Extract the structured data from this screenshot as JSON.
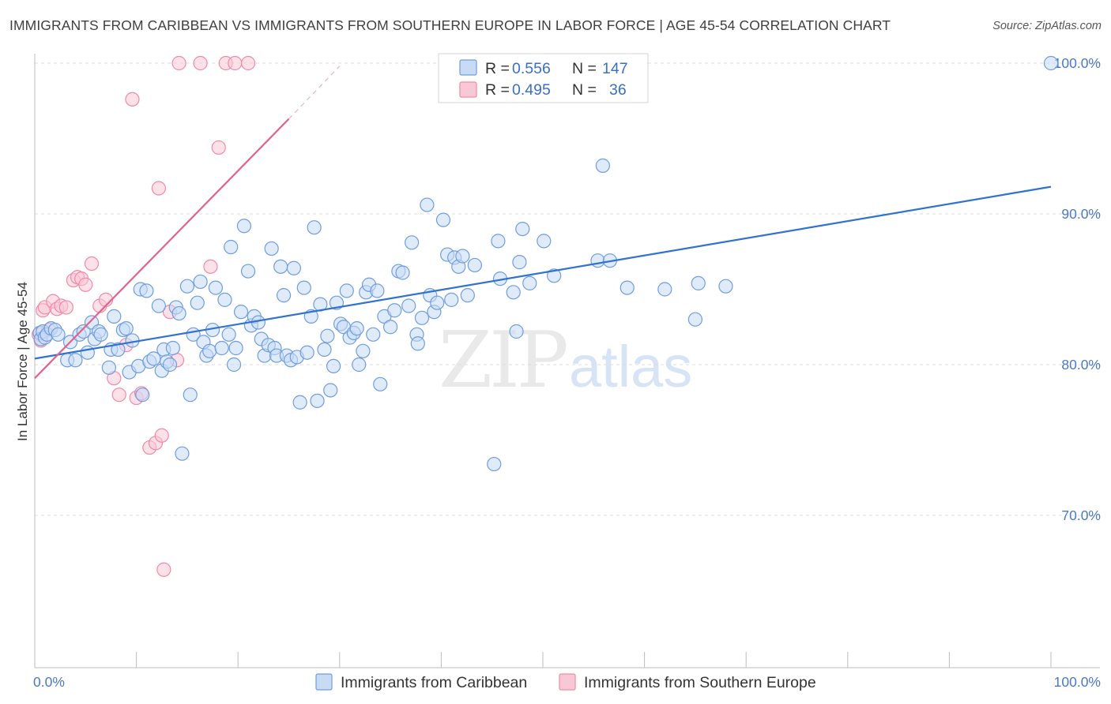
{
  "title": "IMMIGRANTS FROM CARIBBEAN VS IMMIGRANTS FROM SOUTHERN EUROPE IN LABOR FORCE | AGE 45-54 CORRELATION CHART",
  "source": "Source: ZipAtlas.com",
  "watermark": {
    "zip": "ZIP",
    "atlas": "atlas"
  },
  "chart_data": {
    "type": "scatter",
    "title": "IMMIGRANTS FROM CARIBBEAN VS IMMIGRANTS FROM SOUTHERN EUROPE IN LABOR FORCE | AGE 45-54 CORRELATION CHART",
    "xlabel": "",
    "ylabel": "In Labor Force | Age 45-54",
    "xlim": [
      0,
      100
    ],
    "ylim": [
      60.5,
      101.5
    ],
    "x_tick_labels": [
      {
        "value": 0,
        "label": "0.0%"
      },
      {
        "value": 100,
        "label": "100.0%"
      }
    ],
    "y_tick_labels": [
      {
        "value": 70,
        "label": "70.0%"
      },
      {
        "value": 80,
        "label": "80.0%"
      },
      {
        "value": 90,
        "label": "90.0%"
      },
      {
        "value": 100,
        "label": "100.0%"
      }
    ],
    "x_minor_ticks": [
      0,
      10,
      20,
      30,
      40,
      50,
      60,
      70,
      80,
      90,
      100
    ],
    "gridlines_y": [
      70,
      80,
      90,
      100
    ],
    "legend": {
      "position": "top-center",
      "entries": [
        {
          "series": "Immigrants from Caribbean",
          "r_label": "R =",
          "r": "0.556",
          "n_label": "N =",
          "n": "147"
        },
        {
          "series": "Immigrants from Southern Europe",
          "r_label": "R =",
          "r": "0.495",
          "n_label": "N =",
          "n": "36"
        }
      ]
    },
    "series": [
      {
        "name": "Immigrants from Caribbean",
        "color": "#6f9de0",
        "fill": "#c7dbf5",
        "line_color": "#2f72d0",
        "trend": {
          "x": [
            0,
            100
          ],
          "y": [
            80.4,
            91.8
          ]
        },
        "points": [
          [
            0.5,
            82.1
          ],
          [
            0.6,
            81.7
          ],
          [
            0.8,
            82.2
          ],
          [
            1.0,
            81.8
          ],
          [
            1.2,
            82.0
          ],
          [
            1.6,
            82.4
          ],
          [
            2.0,
            82.3
          ],
          [
            2.3,
            82.0
          ],
          [
            3.2,
            80.3
          ],
          [
            3.5,
            81.5
          ],
          [
            4.0,
            80.3
          ],
          [
            4.4,
            82.0
          ],
          [
            4.8,
            82.2
          ],
          [
            5.2,
            80.8
          ],
          [
            5.6,
            82.8
          ],
          [
            5.9,
            81.7
          ],
          [
            6.3,
            82.2
          ],
          [
            6.5,
            82.0
          ],
          [
            7.3,
            79.8
          ],
          [
            7.5,
            81.0
          ],
          [
            7.8,
            83.2
          ],
          [
            8.2,
            81.0
          ],
          [
            8.7,
            82.3
          ],
          [
            9.0,
            82.4
          ],
          [
            9.3,
            79.5
          ],
          [
            9.6,
            81.6
          ],
          [
            10.2,
            79.9
          ],
          [
            10.4,
            85.0
          ],
          [
            10.6,
            78.0
          ],
          [
            11.0,
            84.9
          ],
          [
            11.3,
            80.2
          ],
          [
            11.7,
            80.4
          ],
          [
            12.2,
            83.9
          ],
          [
            12.5,
            79.6
          ],
          [
            12.7,
            81.0
          ],
          [
            13.0,
            80.2
          ],
          [
            13.3,
            80.0
          ],
          [
            13.6,
            81.1
          ],
          [
            13.9,
            83.8
          ],
          [
            14.2,
            83.4
          ],
          [
            14.5,
            74.1
          ],
          [
            15.0,
            85.2
          ],
          [
            15.3,
            78.0
          ],
          [
            15.6,
            82.0
          ],
          [
            16.0,
            84.1
          ],
          [
            16.3,
            85.5
          ],
          [
            16.6,
            81.5
          ],
          [
            16.9,
            80.6
          ],
          [
            17.2,
            80.9
          ],
          [
            17.5,
            82.3
          ],
          [
            17.8,
            85.1
          ],
          [
            18.4,
            81.1
          ],
          [
            18.7,
            84.3
          ],
          [
            19.1,
            82.0
          ],
          [
            19.3,
            87.8
          ],
          [
            19.6,
            80.0
          ],
          [
            19.8,
            81.1
          ],
          [
            20.3,
            83.5
          ],
          [
            20.6,
            89.2
          ],
          [
            21.0,
            86.2
          ],
          [
            21.3,
            82.6
          ],
          [
            21.6,
            83.2
          ],
          [
            22.0,
            82.8
          ],
          [
            22.3,
            81.7
          ],
          [
            22.6,
            80.6
          ],
          [
            23.0,
            81.3
          ],
          [
            23.3,
            87.7
          ],
          [
            23.6,
            81.1
          ],
          [
            23.8,
            80.6
          ],
          [
            24.2,
            86.5
          ],
          [
            24.5,
            84.6
          ],
          [
            24.8,
            80.6
          ],
          [
            25.2,
            80.3
          ],
          [
            25.5,
            86.4
          ],
          [
            25.8,
            80.5
          ],
          [
            26.1,
            77.5
          ],
          [
            26.5,
            85.1
          ],
          [
            26.8,
            80.8
          ],
          [
            27.2,
            83.2
          ],
          [
            27.5,
            89.1
          ],
          [
            27.8,
            77.6
          ],
          [
            28.1,
            84.0
          ],
          [
            28.5,
            81.0
          ],
          [
            28.8,
            81.9
          ],
          [
            29.1,
            78.3
          ],
          [
            29.4,
            79.9
          ],
          [
            29.7,
            84.1
          ],
          [
            30.1,
            82.7
          ],
          [
            30.4,
            82.5
          ],
          [
            30.7,
            84.9
          ],
          [
            31.0,
            81.8
          ],
          [
            31.4,
            82.1
          ],
          [
            31.7,
            82.4
          ],
          [
            31.9,
            80.0
          ],
          [
            32.3,
            80.9
          ],
          [
            32.6,
            84.8
          ],
          [
            32.9,
            85.3
          ],
          [
            33.3,
            82.0
          ],
          [
            33.7,
            84.9
          ],
          [
            34.0,
            78.7
          ],
          [
            34.4,
            83.2
          ],
          [
            35.0,
            82.5
          ],
          [
            35.4,
            83.6
          ],
          [
            35.8,
            86.2
          ],
          [
            36.2,
            86.1
          ],
          [
            36.8,
            83.9
          ],
          [
            37.1,
            88.1
          ],
          [
            37.6,
            82.0
          ],
          [
            37.7,
            81.4
          ],
          [
            38.1,
            83.1
          ],
          [
            38.6,
            90.6
          ],
          [
            38.9,
            84.6
          ],
          [
            39.3,
            83.5
          ],
          [
            39.6,
            84.1
          ],
          [
            40.2,
            89.6
          ],
          [
            40.6,
            87.3
          ],
          [
            41.0,
            84.3
          ],
          [
            41.3,
            87.1
          ],
          [
            41.7,
            86.5
          ],
          [
            42.1,
            87.2
          ],
          [
            42.6,
            84.6
          ],
          [
            43.3,
            86.6
          ],
          [
            45.2,
            73.4
          ],
          [
            45.6,
            88.2
          ],
          [
            45.8,
            85.7
          ],
          [
            47.1,
            84.8
          ],
          [
            47.4,
            82.2
          ],
          [
            47.7,
            86.8
          ],
          [
            48.0,
            89.0
          ],
          [
            48.7,
            85.4
          ],
          [
            50.1,
            88.2
          ],
          [
            51.1,
            85.9
          ],
          [
            55.4,
            86.9
          ],
          [
            55.9,
            93.2
          ],
          [
            56.6,
            86.9
          ],
          [
            58.3,
            85.1
          ],
          [
            62.0,
            85.0
          ],
          [
            65.0,
            83.0
          ],
          [
            65.3,
            85.4
          ],
          [
            68.0,
            85.2
          ],
          [
            100.0,
            100.0
          ]
        ]
      },
      {
        "name": "Immigrants from Southern Europe",
        "color": "#f08aaa",
        "fill": "#f9c8d7",
        "line_color": "#e0648c",
        "trend": {
          "x": [
            0,
            25
          ],
          "y": [
            79.1,
            96.3
          ]
        },
        "trend_extension": {
          "x": [
            25,
            30
          ],
          "y": [
            96.3,
            99.8
          ]
        },
        "points": [
          [
            0.4,
            82.0
          ],
          [
            0.6,
            81.6
          ],
          [
            0.8,
            83.6
          ],
          [
            1.0,
            83.8
          ],
          [
            1.4,
            82.3
          ],
          [
            1.8,
            84.2
          ],
          [
            2.2,
            83.7
          ],
          [
            2.6,
            83.9
          ],
          [
            3.1,
            83.8
          ],
          [
            3.8,
            85.6
          ],
          [
            4.2,
            85.8
          ],
          [
            4.6,
            85.7
          ],
          [
            5.0,
            85.3
          ],
          [
            5.6,
            86.7
          ],
          [
            6.4,
            83.9
          ],
          [
            7.0,
            84.3
          ],
          [
            7.8,
            79.1
          ],
          [
            8.3,
            78.0
          ],
          [
            9.0,
            81.3
          ],
          [
            9.6,
            97.6
          ],
          [
            10.0,
            77.8
          ],
          [
            10.5,
            78.1
          ],
          [
            11.3,
            74.5
          ],
          [
            11.9,
            74.8
          ],
          [
            12.2,
            91.7
          ],
          [
            12.5,
            75.3
          ],
          [
            12.7,
            66.4
          ],
          [
            13.3,
            83.5
          ],
          [
            14.0,
            80.3
          ],
          [
            14.2,
            100.0
          ],
          [
            16.3,
            100.0
          ],
          [
            17.3,
            86.5
          ],
          [
            18.1,
            94.4
          ],
          [
            18.8,
            100.0
          ],
          [
            19.7,
            100.0
          ],
          [
            21.0,
            100.0
          ]
        ]
      }
    ]
  }
}
